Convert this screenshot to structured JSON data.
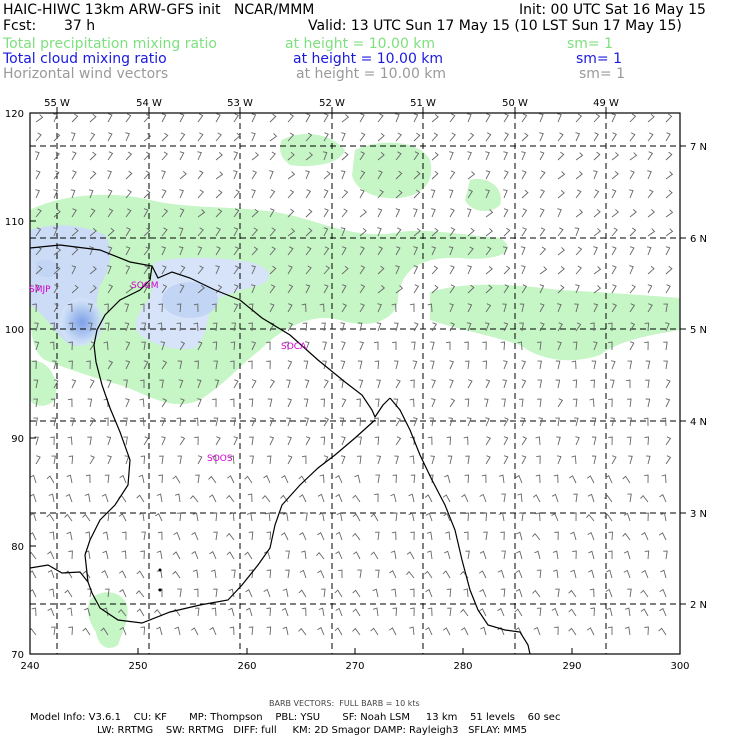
{
  "header": {
    "line1_left": "HAIC-HIWC 13km ARW-GFS init   NCAR/MMM",
    "line1_right": "Init: 00 UTC Sat 16 May 15",
    "fcst_label": "Fcst:",
    "fcst_value": "37 h",
    "valid": "Valid: 13 UTC Sun 17 May 15 (10 LST Sun 17 May 15)",
    "fields": [
      {
        "name": "Total precipitation mixing ratio",
        "height": "at height = 10.00 km",
        "sm": "sm= 1",
        "color": "#7ee07e"
      },
      {
        "name": "Total cloud mixing ratio",
        "height": "at height = 10.00 km",
        "sm": "sm= 1",
        "color": "#1a1adf"
      },
      {
        "name": "Horizontal wind vectors",
        "height": "at height = 10.00 km",
        "sm": "sm= 1",
        "color": "#9a9a9a"
      }
    ]
  },
  "map": {
    "top_lon_labels": [
      "55 W",
      "54 W",
      "53 W",
      "52 W",
      "51 W",
      "50 W",
      "49 W"
    ],
    "right_lat_labels": [
      "7 N",
      "6 N",
      "5 N",
      "4 N",
      "3 N",
      "2 N"
    ],
    "left_y_ticks": [
      "120",
      "110",
      "100",
      "90",
      "80",
      "70"
    ],
    "bottom_x_ticks": [
      "240",
      "250",
      "260",
      "270",
      "280",
      "290",
      "300"
    ],
    "stations": [
      "SMJP",
      "SOGM",
      "SOCA",
      "SOOS"
    ],
    "colors": {
      "precip": "#c6f5c6",
      "cloud": "#b3ccf2",
      "cloud_core": "#8aa9ea",
      "station": "#d000d0",
      "barb": "#666666"
    }
  },
  "footer": {
    "barb_note": "BARB VECTORS:  FULL BARB = 10 kts",
    "line1": "Model Info: V3.6.1    CU: KF       MP: Thompson    PBL: YSU       SF: Noah LSM     13 km    51 levels    60 sec",
    "line2": "LW: RRTMG    SW: RRTMG   DIFF: full     KM: 2D Smagor DAMP: Rayleigh3   SFLAY: MM5"
  }
}
